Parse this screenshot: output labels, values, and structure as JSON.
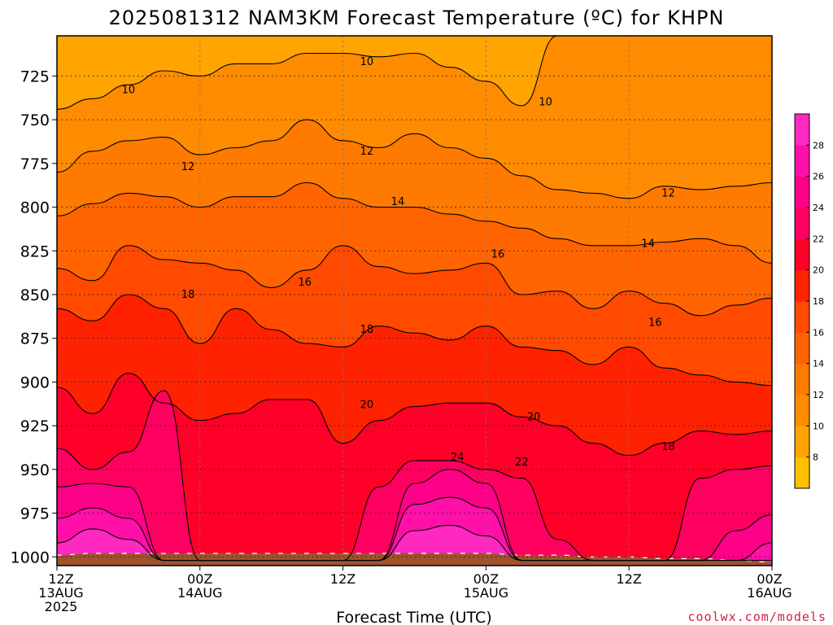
{
  "title": "2025081312 NAM3KM Forecast Temperature (ºC) for KHPN",
  "x_axis_title": "Forecast Time (UTC)",
  "credit": "coolwx.com/models",
  "chart_data": {
    "type": "heatmap",
    "title": "2025081312 NAM3KM Forecast Temperature (ºC) for KHPN",
    "xlabel": "Forecast Time (UTC)",
    "ylabel": "",
    "x_ticks": [
      {
        "hour": 0,
        "line1": "12Z",
        "line2": "13AUG",
        "line3": "2025"
      },
      {
        "hour": 12,
        "line1": "00Z",
        "line2": "14AUG",
        "line3": ""
      },
      {
        "hour": 24,
        "line1": "12Z",
        "line2": "",
        "line3": ""
      },
      {
        "hour": 36,
        "line1": "00Z",
        "line2": "15AUG",
        "line3": ""
      },
      {
        "hour": 48,
        "line1": "12Z",
        "line2": "",
        "line3": ""
      },
      {
        "hour": 60,
        "line1": "00Z",
        "line2": "16AUG",
        "line3": ""
      }
    ],
    "xlim": [
      0,
      60
    ],
    "y_ticks": [
      725,
      750,
      775,
      800,
      825,
      850,
      875,
      900,
      925,
      950,
      975,
      1000
    ],
    "ylim": [
      1005,
      702
    ],
    "y_unit": "hPa",
    "grid": true,
    "colorbar": {
      "levels": [
        6,
        8,
        10,
        12,
        14,
        16,
        18,
        20,
        22,
        24,
        26,
        28,
        30
      ],
      "tick_labels": [
        "8",
        "10",
        "12",
        "14",
        "16",
        "18",
        "20",
        "22",
        "24",
        "26",
        "28"
      ],
      "colors": [
        "#ffc000",
        "#ffa400",
        "#ff8c00",
        "#ff7a00",
        "#ff6400",
        "#ff4a00",
        "#ff2200",
        "#ff0028",
        "#ff0060",
        "#ff0088",
        "#ff10a8",
        "#ff28c0"
      ],
      "placement": "right"
    },
    "contour_interval": 2,
    "time_hours": [
      0,
      3,
      6,
      9,
      12,
      15,
      18,
      21,
      24,
      27,
      30,
      33,
      36,
      39,
      42,
      45,
      48,
      51,
      54,
      57,
      60
    ],
    "isotherm_pressure": {
      "10": [
        744,
        738,
        730,
        722,
        725,
        718,
        718,
        712,
        712,
        714,
        712,
        720,
        728,
        742,
        702,
        702,
        702,
        702,
        702,
        702,
        702
      ],
      "12": [
        780,
        768,
        762,
        760,
        770,
        766,
        762,
        750,
        762,
        766,
        758,
        766,
        772,
        782,
        790,
        792,
        795,
        788,
        790,
        788,
        786
      ],
      "14": [
        805,
        798,
        792,
        794,
        800,
        794,
        794,
        786,
        795,
        800,
        800,
        804,
        808,
        812,
        818,
        822,
        822,
        820,
        818,
        822,
        832
      ],
      "16": [
        835,
        842,
        822,
        830,
        832,
        836,
        846,
        836,
        822,
        834,
        838,
        836,
        832,
        850,
        848,
        858,
        848,
        855,
        862,
        856,
        852
      ],
      "18": [
        858,
        865,
        850,
        858,
        878,
        858,
        870,
        878,
        880,
        868,
        872,
        876,
        868,
        880,
        882,
        890,
        880,
        892,
        896,
        900,
        902
      ],
      "20": [
        903,
        918,
        895,
        912,
        922,
        918,
        910,
        910,
        935,
        922,
        914,
        912,
        912,
        920,
        925,
        935,
        942,
        935,
        928,
        930,
        928
      ],
      "22": [
        938,
        950,
        940,
        905,
        1002,
        1002,
        1002,
        1002,
        1002,
        960,
        945,
        945,
        950,
        955,
        990,
        1002,
        1002,
        1002,
        955,
        950,
        948
      ],
      "24": [
        960,
        958,
        960,
        1002,
        1002,
        1002,
        1002,
        1002,
        1002,
        1002,
        958,
        950,
        958,
        1002,
        1002,
        1002,
        1002,
        1002,
        1002,
        985,
        976
      ],
      "26": [
        978,
        972,
        978,
        1002,
        1002,
        1002,
        1002,
        1002,
        1002,
        1002,
        970,
        966,
        972,
        1002,
        1002,
        1002,
        1002,
        1002,
        1002,
        1002,
        992
      ],
      "28": [
        992,
        984,
        990,
        1002,
        1002,
        1002,
        1002,
        1002,
        1002,
        1002,
        985,
        982,
        988,
        1002,
        1002,
        1002,
        1002,
        1002,
        1002,
        1002,
        1002
      ]
    },
    "surface_pressure": [
      999,
      998,
      998,
      998,
      998,
      998,
      998,
      998,
      998,
      998,
      998,
      998,
      998,
      999,
      999,
      1000,
      1000,
      1001,
      1001,
      1002,
      1003
    ],
    "surface_color": "#a0522d",
    "contour_labels": [
      {
        "value": "10",
        "hour": 6,
        "pressure": 733
      },
      {
        "value": "10",
        "hour": 26,
        "pressure": 717
      },
      {
        "value": "10",
        "hour": 41,
        "pressure": 740
      },
      {
        "value": "12",
        "hour": 11,
        "pressure": 777
      },
      {
        "value": "12",
        "hour": 26,
        "pressure": 768
      },
      {
        "value": "12",
        "hour": 51.3,
        "pressure": 792
      },
      {
        "value": "14",
        "hour": 28.6,
        "pressure": 797
      },
      {
        "value": "14",
        "hour": 49.6,
        "pressure": 821
      },
      {
        "value": "16",
        "hour": 20.8,
        "pressure": 843
      },
      {
        "value": "16",
        "hour": 37,
        "pressure": 827
      },
      {
        "value": "16",
        "hour": 50.2,
        "pressure": 866
      },
      {
        "value": "18",
        "hour": 11,
        "pressure": 850
      },
      {
        "value": "18",
        "hour": 26,
        "pressure": 870
      },
      {
        "value": "18",
        "hour": 51.3,
        "pressure": 937
      },
      {
        "value": "20",
        "hour": 26,
        "pressure": 913
      },
      {
        "value": "20",
        "hour": 40,
        "pressure": 920
      },
      {
        "value": "22",
        "hour": 39,
        "pressure": 946
      },
      {
        "value": "24",
        "hour": 33.6,
        "pressure": 943
      }
    ]
  }
}
